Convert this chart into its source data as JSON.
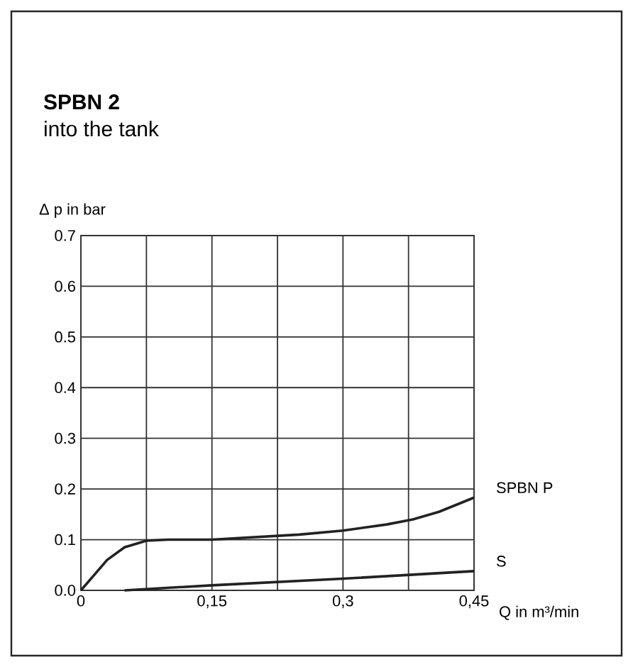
{
  "chart_data": {
    "type": "line",
    "title": "SPBN 2",
    "subtitle": "into the tank",
    "xlabel": "Q in m³/min",
    "ylabel": "Δ p in bar",
    "xlim": [
      0,
      0.45
    ],
    "ylim": [
      0,
      0.7
    ],
    "xticks": [
      {
        "value": 0,
        "label": "0"
      },
      {
        "value": 0.075,
        "label": null
      },
      {
        "value": 0.15,
        "label": "0,15"
      },
      {
        "value": 0.225,
        "label": null
      },
      {
        "value": 0.3,
        "label": "0,3"
      },
      {
        "value": 0.375,
        "label": null
      },
      {
        "value": 0.45,
        "label": "0,45"
      }
    ],
    "yticks": [
      {
        "value": 0,
        "label": "0.0"
      },
      0.1,
      0.2,
      0.3,
      0.4,
      0.5,
      0.6,
      0.7
    ],
    "grid": true,
    "series": [
      {
        "name": "SPBN P",
        "color": "#222222",
        "x": [
          0,
          0.015,
          0.03,
          0.05,
          0.075,
          0.1,
          0.15,
          0.2,
          0.25,
          0.3,
          0.35,
          0.38,
          0.41,
          0.45
        ],
        "values": [
          0,
          0.03,
          0.06,
          0.085,
          0.098,
          0.1,
          0.1,
          0.105,
          0.11,
          0.118,
          0.13,
          0.14,
          0.155,
          0.183
        ]
      },
      {
        "name": "S",
        "color": "#222222",
        "x": [
          0.05,
          0.15,
          0.3,
          0.45
        ],
        "values": [
          0,
          0.01,
          0.023,
          0.038
        ]
      }
    ]
  }
}
